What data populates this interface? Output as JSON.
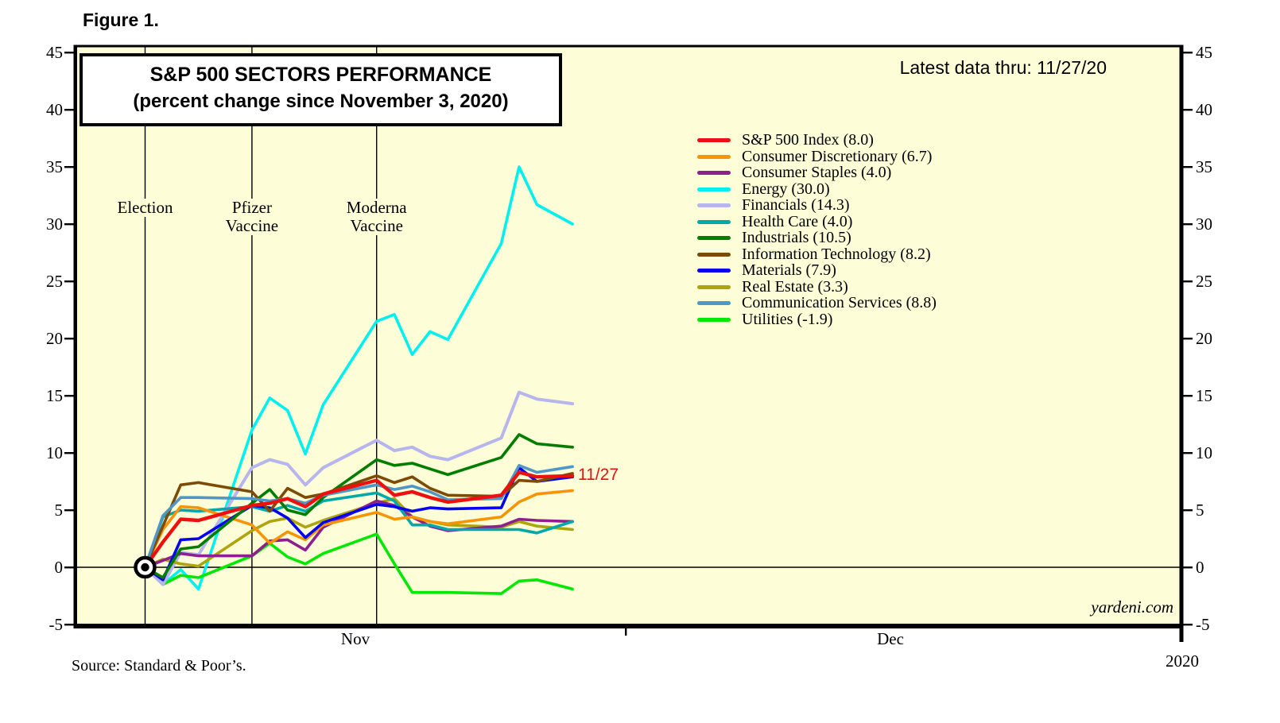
{
  "figure_label": "Figure 1.",
  "title": {
    "line1": "S&P 500 SECTORS PERFORMANCE",
    "line2": "(percent change since November 3, 2020)"
  },
  "latest_data_label": "Latest data thru: 11/27/20",
  "endpoint_label": "11/27",
  "watermark": "yardeni.com",
  "source": "Source: Standard & Poor’s.",
  "year_label": "2020",
  "colors": {
    "plot_background": "#FDFDD8",
    "axis": "#000000",
    "endpoint_label": "#E31212"
  },
  "legend": {
    "items": [
      {
        "display": "S&P 500 Index (8.0)",
        "color": "#EC1010"
      },
      {
        "display": "Consumer Discretionary (6.7)",
        "color": "#F79405"
      },
      {
        "display": "Consumer Staples (4.0)",
        "color": "#8E1F8E"
      },
      {
        "display": "Energy (30.0)",
        "color": "#00EFEF"
      },
      {
        "display": "Financials (14.3)",
        "color": "#B7B5EE"
      },
      {
        "display": "Health Care (4.0)",
        "color": "#00A9A9"
      },
      {
        "display": "Industrials (10.5)",
        "color": "#017D01"
      },
      {
        "display": "Information Technology (8.2)",
        "color": "#7C4B05"
      },
      {
        "display": "Materials (7.9)",
        "color": "#0503EE"
      },
      {
        "display": "Real Estate (3.3)",
        "color": "#ADA40E"
      },
      {
        "display": "Communication Services (8.8)",
        "color": "#4E97C6"
      },
      {
        "display": "Utilities (-1.9)",
        "color": "#02E802"
      }
    ]
  },
  "events": [
    {
      "label_lines": [
        "Election"
      ],
      "day": 0
    },
    {
      "label_lines": [
        "Pfizer",
        "Vaccine"
      ],
      "day": 6
    },
    {
      "label_lines": [
        "Moderna",
        "Vaccine"
      ],
      "day": 13
    }
  ],
  "chart_data": {
    "type": "line",
    "title": "S&P 500 SECTORS PERFORMANCE (percent change since November 3, 2020)",
    "xlabel": "",
    "ylabel": "percent change since November 3, 2020",
    "ylim": [
      -5,
      45
    ],
    "y_ticks": [
      45,
      40,
      35,
      30,
      25,
      20,
      15,
      10,
      5,
      0,
      -5
    ],
    "months": [
      "Nov",
      "Dec"
    ],
    "grid": "zero-line and event verticals only",
    "legend_position": "upper middle-right, no box",
    "dates": [
      "11/3",
      "11/4",
      "11/5",
      "11/6",
      "11/9",
      "11/10",
      "11/11",
      "11/12",
      "11/13",
      "11/16",
      "11/17",
      "11/18",
      "11/19",
      "11/20",
      "11/23",
      "11/24",
      "11/25",
      "11/27"
    ],
    "day_offsets": [
      0,
      1,
      2,
      3,
      6,
      7,
      8,
      9,
      10,
      13,
      14,
      15,
      16,
      17,
      20,
      21,
      22,
      24
    ],
    "series": [
      {
        "name": "S&P 500 Index",
        "final": 8.0,
        "color": "#EC1010",
        "values": [
          0,
          2.2,
          4.2,
          4.1,
          5.4,
          5.6,
          6.0,
          5.3,
          6.4,
          7.6,
          6.3,
          6.6,
          6.1,
          5.7,
          6.3,
          8.3,
          7.9,
          8.0
        ]
      },
      {
        "name": "Consumer Discretionary",
        "final": 6.7,
        "color": "#F79405",
        "values": [
          0,
          3.3,
          5.3,
          5.2,
          3.7,
          2.1,
          3.1,
          2.4,
          3.7,
          4.8,
          4.2,
          4.4,
          4.0,
          3.8,
          4.4,
          5.7,
          6.4,
          6.7
        ]
      },
      {
        "name": "Consumer Staples",
        "final": 4.0,
        "color": "#8E1F8E",
        "values": [
          0,
          0.6,
          1.2,
          1.0,
          1.0,
          2.3,
          2.4,
          1.5,
          3.5,
          5.8,
          5.4,
          4.4,
          3.6,
          3.2,
          3.6,
          4.2,
          4.1,
          4.0
        ]
      },
      {
        "name": "Energy",
        "final": 30.0,
        "color": "#00EFEF",
        "values": [
          0,
          -1.5,
          -0.2,
          -1.9,
          12.0,
          14.8,
          13.7,
          9.9,
          14.2,
          21.5,
          22.1,
          18.6,
          20.6,
          19.9,
          28.3,
          35.0,
          31.7,
          30.0
        ]
      },
      {
        "name": "Financials",
        "final": 14.3,
        "color": "#B7B5EE",
        "values": [
          0,
          -1.5,
          1.3,
          1.1,
          8.7,
          9.4,
          9.0,
          7.2,
          8.7,
          11.1,
          10.2,
          10.5,
          9.7,
          9.4,
          11.3,
          15.3,
          14.7,
          14.3
        ]
      },
      {
        "name": "Health Care",
        "final": 4.0,
        "color": "#00A9A9",
        "values": [
          0,
          4.4,
          5.0,
          4.9,
          5.3,
          4.9,
          5.4,
          4.9,
          5.8,
          6.5,
          5.8,
          3.7,
          3.7,
          3.3,
          3.3,
          3.3,
          3.0,
          4.0
        ]
      },
      {
        "name": "Industrials",
        "final": 10.5,
        "color": "#017D01",
        "values": [
          0,
          -0.9,
          1.6,
          1.8,
          5.6,
          6.8,
          5.0,
          4.6,
          6.1,
          9.4,
          8.9,
          9.1,
          8.6,
          8.1,
          9.6,
          11.6,
          10.8,
          10.5
        ]
      },
      {
        "name": "Information Technology",
        "final": 8.2,
        "color": "#7C4B05",
        "values": [
          0,
          3.6,
          7.2,
          7.4,
          6.6,
          4.9,
          6.9,
          6.1,
          6.4,
          8.0,
          7.4,
          7.9,
          6.9,
          6.3,
          6.2,
          7.6,
          7.5,
          8.2
        ]
      },
      {
        "name": "Materials",
        "final": 7.9,
        "color": "#0503EE",
        "values": [
          0,
          -1.1,
          2.4,
          2.5,
          5.4,
          5.2,
          4.3,
          2.6,
          3.9,
          5.5,
          5.3,
          4.9,
          5.2,
          5.1,
          5.2,
          8.7,
          7.5,
          7.9
        ]
      },
      {
        "name": "Real Estate",
        "final": 3.3,
        "color": "#ADA40E",
        "values": [
          0,
          0.7,
          0.3,
          0.1,
          3.2,
          4.0,
          4.3,
          3.5,
          4.1,
          5.6,
          6.0,
          4.4,
          4.0,
          3.7,
          3.5,
          4.0,
          3.6,
          3.3
        ]
      },
      {
        "name": "Communication Services",
        "final": 8.8,
        "color": "#4E97C6",
        "values": [
          0,
          4.5,
          6.1,
          6.1,
          6.0,
          5.8,
          6.0,
          5.6,
          6.3,
          7.2,
          6.8,
          7.1,
          6.6,
          5.9,
          6.0,
          8.9,
          8.3,
          8.8
        ]
      },
      {
        "name": "Utilities",
        "final": -1.9,
        "color": "#02E802",
        "values": [
          0,
          -1.5,
          -0.7,
          -0.9,
          1.0,
          2.1,
          0.9,
          0.3,
          1.2,
          2.9,
          0.3,
          -2.2,
          -2.2,
          -2.2,
          -2.3,
          -1.2,
          -1.1,
          -1.9
        ]
      }
    ],
    "annotations": [
      {
        "text": "Election",
        "date": "11/3"
      },
      {
        "text": "Pfizer Vaccine",
        "date": "11/9"
      },
      {
        "text": "Moderna Vaccine",
        "date": "11/16"
      },
      {
        "text": "11/27",
        "desc": "end-of-data label at S&P 500 line level"
      }
    ]
  }
}
